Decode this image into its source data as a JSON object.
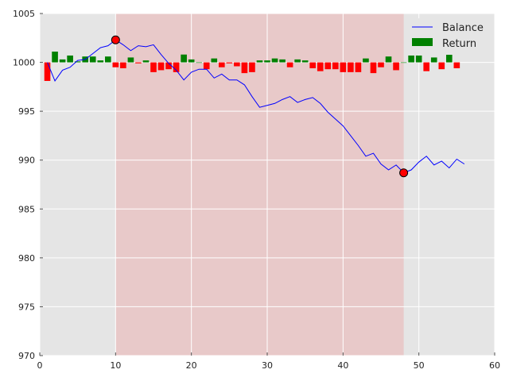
{
  "chart_data": {
    "type": "line",
    "xlim": [
      0,
      60
    ],
    "ylim": [
      970,
      1005
    ],
    "x_ticks": [
      0,
      10,
      20,
      30,
      40,
      50,
      60
    ],
    "y_ticks": [
      970,
      975,
      980,
      985,
      990,
      995,
      1000,
      1005
    ],
    "grid": true,
    "legend_position": "top-right",
    "legend": [
      {
        "label": "Balance",
        "kind": "line",
        "color": "#0000ff"
      },
      {
        "label": "Return",
        "kind": "bar",
        "color": "#008000"
      }
    ],
    "highlight_span": {
      "x_start": 10,
      "x_end": 48,
      "color": "#e8c9c9"
    },
    "series": [
      {
        "name": "Balance",
        "type": "line",
        "color": "#0000ff",
        "x": [
          1,
          2,
          3,
          4,
          5,
          6,
          7,
          8,
          9,
          10,
          11,
          12,
          13,
          14,
          15,
          16,
          17,
          18,
          19,
          20,
          21,
          22,
          23,
          24,
          25,
          26,
          27,
          28,
          29,
          30,
          31,
          32,
          33,
          34,
          35,
          36,
          37,
          38,
          39,
          40,
          41,
          42,
          43,
          44,
          45,
          46,
          47,
          48,
          49,
          50,
          51,
          52,
          53,
          54,
          55,
          56
        ],
        "y": [
          1000.0,
          998.1,
          999.2,
          999.5,
          1000.2,
          1000.3,
          1000.9,
          1001.5,
          1001.7,
          1002.3,
          1001.8,
          1001.2,
          1001.7,
          1001.6,
          1001.8,
          1000.8,
          999.9,
          999.2,
          998.2,
          999.0,
          999.3,
          999.3,
          998.4,
          998.8,
          998.2,
          998.2,
          997.7,
          996.5,
          995.4,
          995.6,
          995.8,
          996.2,
          996.5,
          995.9,
          996.2,
          996.4,
          995.8,
          994.9,
          994.2,
          993.5,
          992.5,
          991.5,
          990.4,
          990.7,
          989.6,
          989.0,
          989.5,
          988.7,
          989.0,
          989.8,
          990.4,
          989.5,
          989.9,
          989.2,
          990.1,
          989.6
        ]
      },
      {
        "name": "Return",
        "type": "bar",
        "x": [
          1,
          2,
          3,
          4,
          5,
          6,
          7,
          8,
          9,
          10,
          11,
          12,
          13,
          14,
          15,
          16,
          17,
          18,
          19,
          20,
          21,
          22,
          23,
          24,
          25,
          26,
          27,
          28,
          29,
          30,
          31,
          32,
          33,
          34,
          35,
          36,
          37,
          38,
          39,
          40,
          41,
          42,
          43,
          44,
          45,
          46,
          47,
          48,
          49,
          50,
          51,
          52,
          53,
          54,
          55
        ],
        "values": [
          -1.9,
          1.1,
          0.3,
          0.7,
          0.1,
          0.6,
          0.6,
          0.2,
          0.6,
          -0.5,
          -0.6,
          0.5,
          -0.1,
          0.2,
          -1.0,
          -0.8,
          -0.7,
          -1.0,
          0.8,
          0.3,
          0.0,
          -0.7,
          0.4,
          -0.5,
          -0.1,
          -0.4,
          -1.1,
          -1.0,
          0.2,
          0.2,
          0.4,
          0.3,
          -0.5,
          0.3,
          0.2,
          -0.6,
          -0.9,
          -0.7,
          -0.7,
          -1.0,
          -1.0,
          -1.0,
          0.4,
          -1.1,
          -0.5,
          0.6,
          -0.8,
          0.0,
          0.7,
          0.7,
          -0.9,
          0.5,
          -0.7,
          1.0,
          -0.6
        ],
        "positive_color": "#008000",
        "negative_color": "#ff0000"
      }
    ],
    "markers": [
      {
        "x": 10,
        "y": 1002.3,
        "color": "#ff0000"
      },
      {
        "x": 48,
        "y": 988.7,
        "color": "#ff0000"
      }
    ]
  }
}
